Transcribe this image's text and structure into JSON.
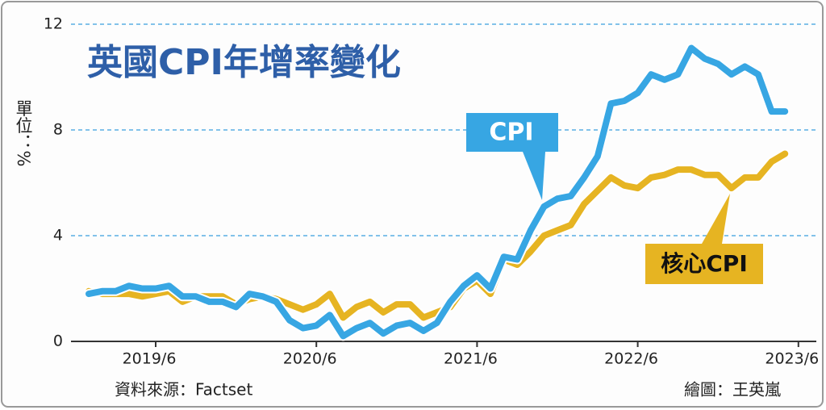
{
  "chart_data": {
    "type": "line",
    "title": "英國CPI年增率變化",
    "y_label": "單位：%",
    "source": "資料來源：Factset",
    "credit": "繪圖：王英嵐",
    "x": [
      "2019/1",
      "2019/2",
      "2019/3",
      "2019/4",
      "2019/5",
      "2019/6",
      "2019/7",
      "2019/8",
      "2019/9",
      "2019/10",
      "2019/11",
      "2019/12",
      "2020/1",
      "2020/2",
      "2020/3",
      "2020/4",
      "2020/5",
      "2020/6",
      "2020/7",
      "2020/8",
      "2020/9",
      "2020/10",
      "2020/11",
      "2020/12",
      "2021/1",
      "2021/2",
      "2021/3",
      "2021/4",
      "2021/5",
      "2021/6",
      "2021/7",
      "2021/8",
      "2021/9",
      "2021/10",
      "2021/11",
      "2021/12",
      "2022/1",
      "2022/2",
      "2022/3",
      "2022/4",
      "2022/5",
      "2022/6",
      "2022/7",
      "2022/8",
      "2022/9",
      "2022/10",
      "2022/11",
      "2022/12",
      "2023/1",
      "2023/2",
      "2023/3",
      "2023/4",
      "2023/5"
    ],
    "xticks": [
      "2019/6",
      "2020/6",
      "2021/6",
      "2022/6",
      "2023/6"
    ],
    "series": [
      {
        "name": "核心CPI",
        "color": "#e6b422",
        "values": [
          1.9,
          1.8,
          1.8,
          1.8,
          1.7,
          1.8,
          1.9,
          1.5,
          1.7,
          1.7,
          1.7,
          1.4,
          1.6,
          1.7,
          1.6,
          1.4,
          1.2,
          1.4,
          1.8,
          0.9,
          1.3,
          1.5,
          1.1,
          1.4,
          1.4,
          0.9,
          1.1,
          1.3,
          2.0,
          2.3,
          1.8,
          3.1,
          2.9,
          3.4,
          4.0,
          4.2,
          4.4,
          5.2,
          5.7,
          6.2,
          5.9,
          5.8,
          6.2,
          6.3,
          6.5,
          6.5,
          6.3,
          6.3,
          5.8,
          6.2,
          6.2,
          6.8,
          7.1
        ]
      },
      {
        "name": "CPI",
        "color": "#37a6e3",
        "values": [
          1.8,
          1.9,
          1.9,
          2.1,
          2.0,
          2.0,
          2.1,
          1.7,
          1.7,
          1.5,
          1.5,
          1.3,
          1.8,
          1.7,
          1.5,
          0.8,
          0.5,
          0.6,
          1.0,
          0.2,
          0.5,
          0.7,
          0.3,
          0.6,
          0.7,
          0.4,
          0.7,
          1.5,
          2.1,
          2.5,
          2.0,
          3.2,
          3.1,
          4.2,
          5.1,
          5.4,
          5.5,
          6.2,
          7.0,
          9.0,
          9.1,
          9.4,
          10.1,
          9.9,
          10.1,
          11.1,
          10.7,
          10.5,
          10.1,
          10.4,
          10.1,
          8.7,
          8.7
        ]
      }
    ],
    "ylim": [
      0,
      12
    ],
    "yticks": [
      0,
      4,
      8,
      12
    ],
    "grid": true
  }
}
